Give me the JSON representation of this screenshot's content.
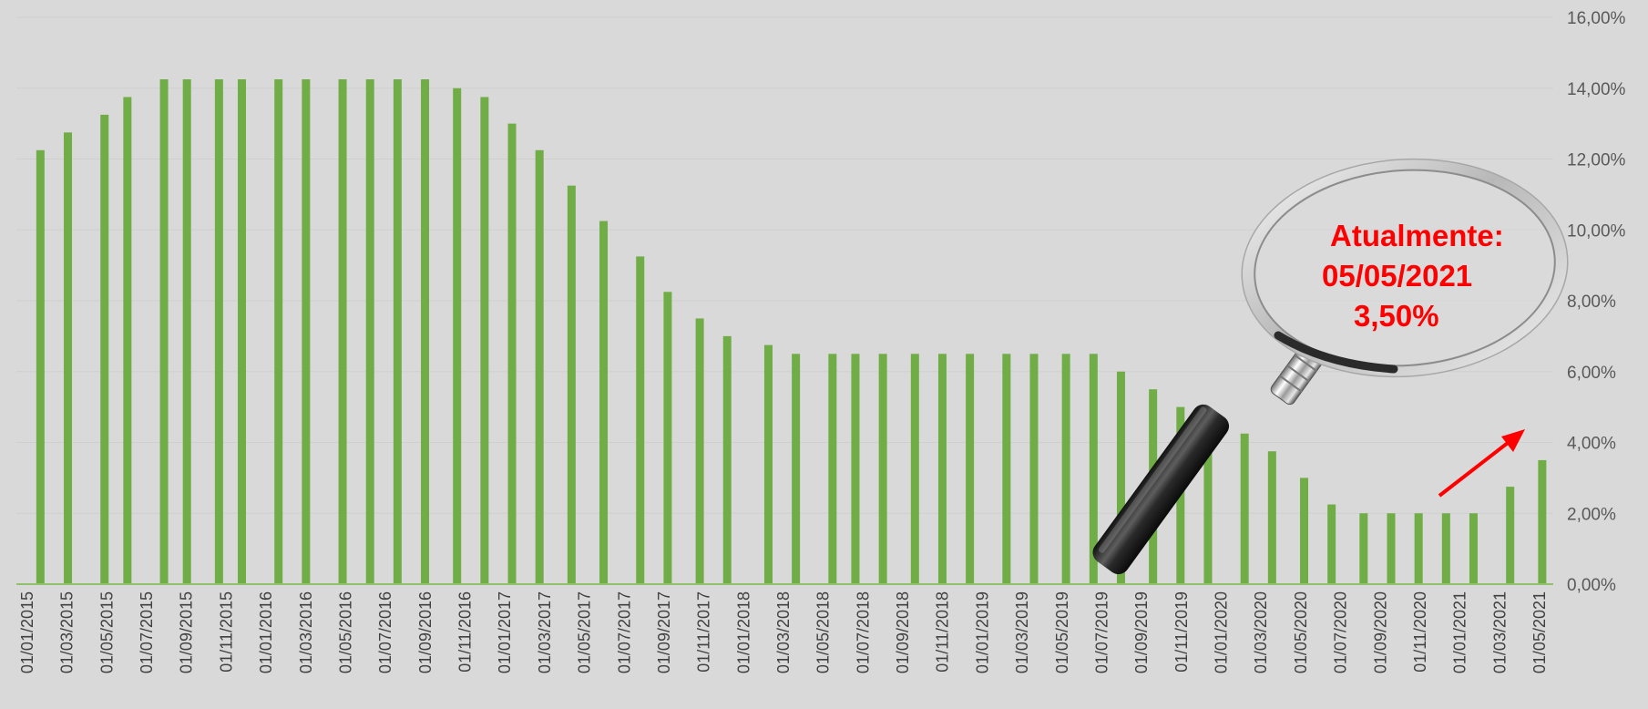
{
  "chart_data": {
    "type": "bar",
    "title": "",
    "xlabel": "",
    "ylabel": "",
    "ylim": [
      0,
      16
    ],
    "y_ticks": [
      "0,00%",
      "2,00%",
      "4,00%",
      "6,00%",
      "8,00%",
      "10,00%",
      "12,00%",
      "14,00%",
      "16,00%"
    ],
    "y_axis_side": "right",
    "grid": true,
    "legend": "none",
    "x_tick_labels": [
      "01/01/2015",
      "01/03/2015",
      "01/05/2015",
      "01/07/2015",
      "01/09/2015",
      "01/11/2015",
      "01/01/2016",
      "01/03/2016",
      "01/05/2016",
      "01/07/2016",
      "01/09/2016",
      "01/11/2016",
      "01/01/2017",
      "01/03/2017",
      "01/05/2017",
      "01/07/2017",
      "01/09/2017",
      "01/11/2017",
      "01/01/2018",
      "01/03/2018",
      "01/05/2018",
      "01/07/2018",
      "01/09/2018",
      "01/11/2018",
      "01/01/2019",
      "01/03/2019",
      "01/05/2019",
      "01/07/2019",
      "01/09/2019",
      "01/11/2019",
      "01/01/2020",
      "01/03/2020",
      "01/05/2020",
      "01/07/2020",
      "01/09/2020",
      "01/11/2020",
      "01/01/2021",
      "01/03/2021",
      "01/05/2021"
    ],
    "x": [
      "2015-01-21",
      "2015-03-04",
      "2015-04-29",
      "2015-06-03",
      "2015-07-29",
      "2015-09-02",
      "2015-10-21",
      "2015-11-25",
      "2016-01-20",
      "2016-03-02",
      "2016-04-27",
      "2016-06-08",
      "2016-07-20",
      "2016-08-31",
      "2016-10-19",
      "2016-11-30",
      "2017-01-11",
      "2017-02-22",
      "2017-04-12",
      "2017-05-31",
      "2017-07-26",
      "2017-09-06",
      "2017-10-25",
      "2017-12-06",
      "2018-02-07",
      "2018-03-21",
      "2018-05-16",
      "2018-06-20",
      "2018-08-01",
      "2018-09-19",
      "2018-10-31",
      "2018-12-12",
      "2019-02-06",
      "2019-03-20",
      "2019-05-08",
      "2019-06-19",
      "2019-07-31",
      "2019-09-18",
      "2019-10-30",
      "2019-12-11",
      "2020-02-05",
      "2020-03-18",
      "2020-05-06",
      "2020-06-17",
      "2020-08-05",
      "2020-09-16",
      "2020-10-28",
      "2020-12-09",
      "2021-01-20",
      "2021-03-17",
      "2021-05-05"
    ],
    "values": [
      12.25,
      12.75,
      13.25,
      13.75,
      14.25,
      14.25,
      14.25,
      14.25,
      14.25,
      14.25,
      14.25,
      14.25,
      14.25,
      14.25,
      14.0,
      13.75,
      13.0,
      12.25,
      11.25,
      10.25,
      9.25,
      8.25,
      7.5,
      7.0,
      6.75,
      6.5,
      6.5,
      6.5,
      6.5,
      6.5,
      6.5,
      6.5,
      6.5,
      6.5,
      6.5,
      6.5,
      6.0,
      5.5,
      5.0,
      4.5,
      4.25,
      3.75,
      3.0,
      2.25,
      2.0,
      2.0,
      2.0,
      2.0,
      2.0,
      2.75,
      3.5
    ],
    "bar_color": "#70ad47"
  },
  "callout": {
    "line1": "Atualmente:",
    "line2": "05/05/2021",
    "line3": "3,50%",
    "color": "#ff0000"
  },
  "icon": "magnifying-glass-icon",
  "arrow_icon": "trend-up-arrow-icon"
}
